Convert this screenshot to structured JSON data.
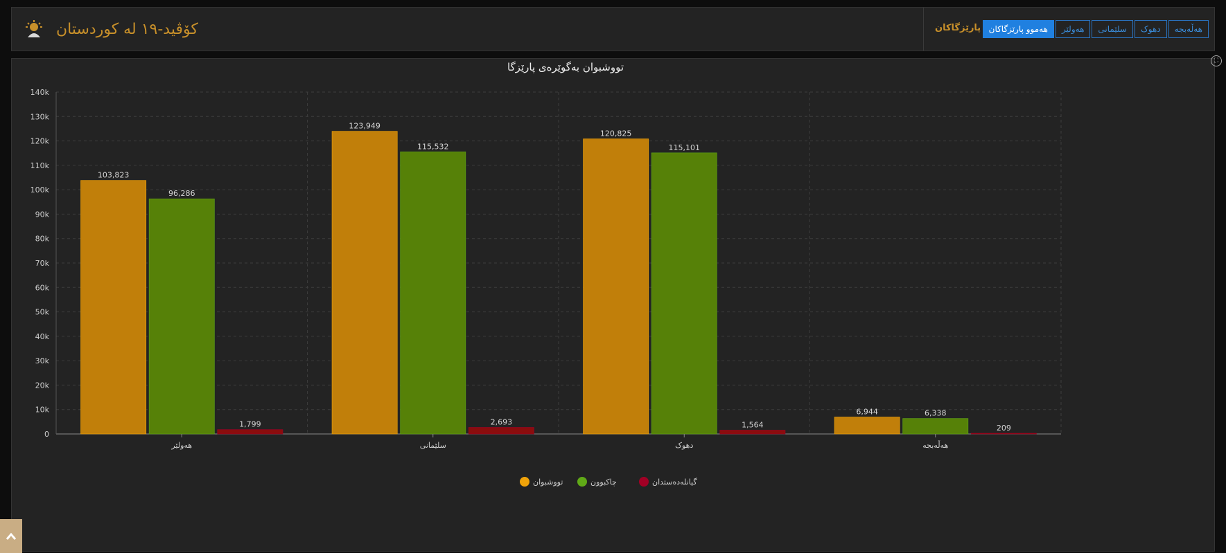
{
  "header": {
    "title": "کۆڤید-١٩ له کوردستان",
    "emblem_icon": "sun-emblem-icon",
    "nav_label": "پارێزگاکان",
    "buttons": [
      {
        "label": "هەڵەبجە",
        "active": false
      },
      {
        "label": "دهوک",
        "active": false
      },
      {
        "label": "سلێمانی",
        "active": false
      },
      {
        "label": "هەولێر",
        "active": false
      },
      {
        "label": "هەموو پارێزگاکان",
        "active": true
      }
    ]
  },
  "icons": {
    "fullscreen": "fullscreen-icon",
    "back_to_top": "chevron-up-icon"
  },
  "chart_data": {
    "type": "bar",
    "title": "تووشبوان بەگوێرەی پارێزگا",
    "categories": [
      "هەولێر",
      "سلێمانی",
      "دهوک",
      "هەڵەبجە"
    ],
    "series": [
      {
        "name": "تووشبوان",
        "color": "#c17f0a",
        "legend_color": "#f0a30a",
        "values": [
          103823,
          123949,
          120825,
          6944
        ],
        "labels": [
          "103,823",
          "123,949",
          "120,825",
          "6,944"
        ]
      },
      {
        "name": "چاکبوون",
        "color": "#568108",
        "legend_color": "#60a917",
        "values": [
          96286,
          115532,
          115101,
          6338
        ],
        "labels": [
          "96,286",
          "115,532",
          "115,101",
          "6,338"
        ]
      },
      {
        "name": "گیانلەدەستدان",
        "color": "#8a0d0d",
        "legend_color": "#a20025",
        "values": [
          1799,
          2693,
          1564,
          209
        ],
        "labels": [
          "1,799",
          "2,693",
          "1,564",
          "209"
        ]
      }
    ],
    "yticks": [
      {
        "value": 0,
        "label": "0"
      },
      {
        "value": 10000,
        "label": "10k"
      },
      {
        "value": 20000,
        "label": "20k"
      },
      {
        "value": 30000,
        "label": "30k"
      },
      {
        "value": 40000,
        "label": "40k"
      },
      {
        "value": 50000,
        "label": "50k"
      },
      {
        "value": 60000,
        "label": "60k"
      },
      {
        "value": 70000,
        "label": "70k"
      },
      {
        "value": 80000,
        "label": "80k"
      },
      {
        "value": 90000,
        "label": "90k"
      },
      {
        "value": 100000,
        "label": "100k"
      },
      {
        "value": 110000,
        "label": "110k"
      },
      {
        "value": 120000,
        "label": "120k"
      },
      {
        "value": 130000,
        "label": "130k"
      },
      {
        "value": 140000,
        "label": "140k"
      }
    ],
    "ylim": [
      0,
      140000
    ],
    "grid": true,
    "legend_position": "bottom-center"
  }
}
